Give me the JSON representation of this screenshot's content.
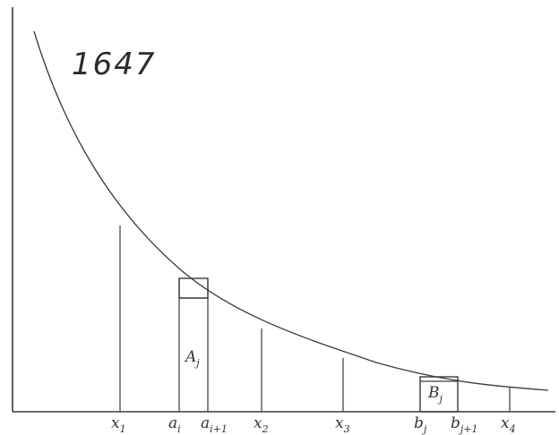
{
  "annotation": "1647",
  "labels": {
    "x1": {
      "base": "x",
      "sub": "1"
    },
    "ai": {
      "base": "a",
      "sub": "i"
    },
    "ai1": {
      "base": "a",
      "sub": "i+1"
    },
    "x2": {
      "base": "x",
      "sub": "2"
    },
    "x3": {
      "base": "x",
      "sub": "3"
    },
    "bj": {
      "base": "b",
      "sub": "j"
    },
    "bj1": {
      "base": "b",
      "sub": "j+1"
    },
    "x4": {
      "base": "x",
      "sub": "4"
    },
    "Aj": {
      "base": "A",
      "sub": "j"
    },
    "Bj": {
      "base": "B",
      "sub": "j"
    }
  }
}
